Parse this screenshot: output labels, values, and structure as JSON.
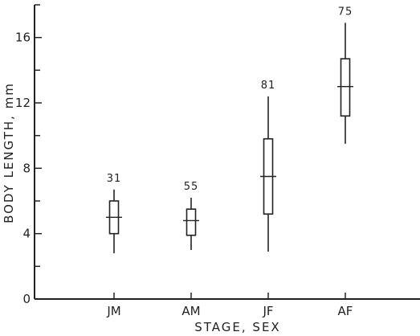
{
  "chart_data": {
    "type": "box",
    "xlabel": "STAGE, SEX",
    "ylabel": "BODY LENGTH, mm",
    "ylim": [
      0,
      18
    ],
    "yticks": [
      0,
      4,
      8,
      12,
      16
    ],
    "grid": false,
    "categories": [
      "JM",
      "AM",
      "JF",
      "AF"
    ],
    "boxes": [
      {
        "category": "JM",
        "n": "31",
        "min": 2.8,
        "q1": 4.0,
        "median": 5.0,
        "q3": 6.0,
        "max": 6.7
      },
      {
        "category": "AM",
        "n": "55",
        "min": 3.0,
        "q1": 3.9,
        "median": 4.8,
        "q3": 5.5,
        "max": 6.2
      },
      {
        "category": "JF",
        "n": "81",
        "min": 2.9,
        "q1": 5.2,
        "median": 7.5,
        "q3": 9.8,
        "max": 12.4
      },
      {
        "category": "AF",
        "n": "75",
        "min": 9.5,
        "q1": 11.2,
        "median": 13.0,
        "q3": 14.7,
        "max": 16.9
      }
    ]
  }
}
